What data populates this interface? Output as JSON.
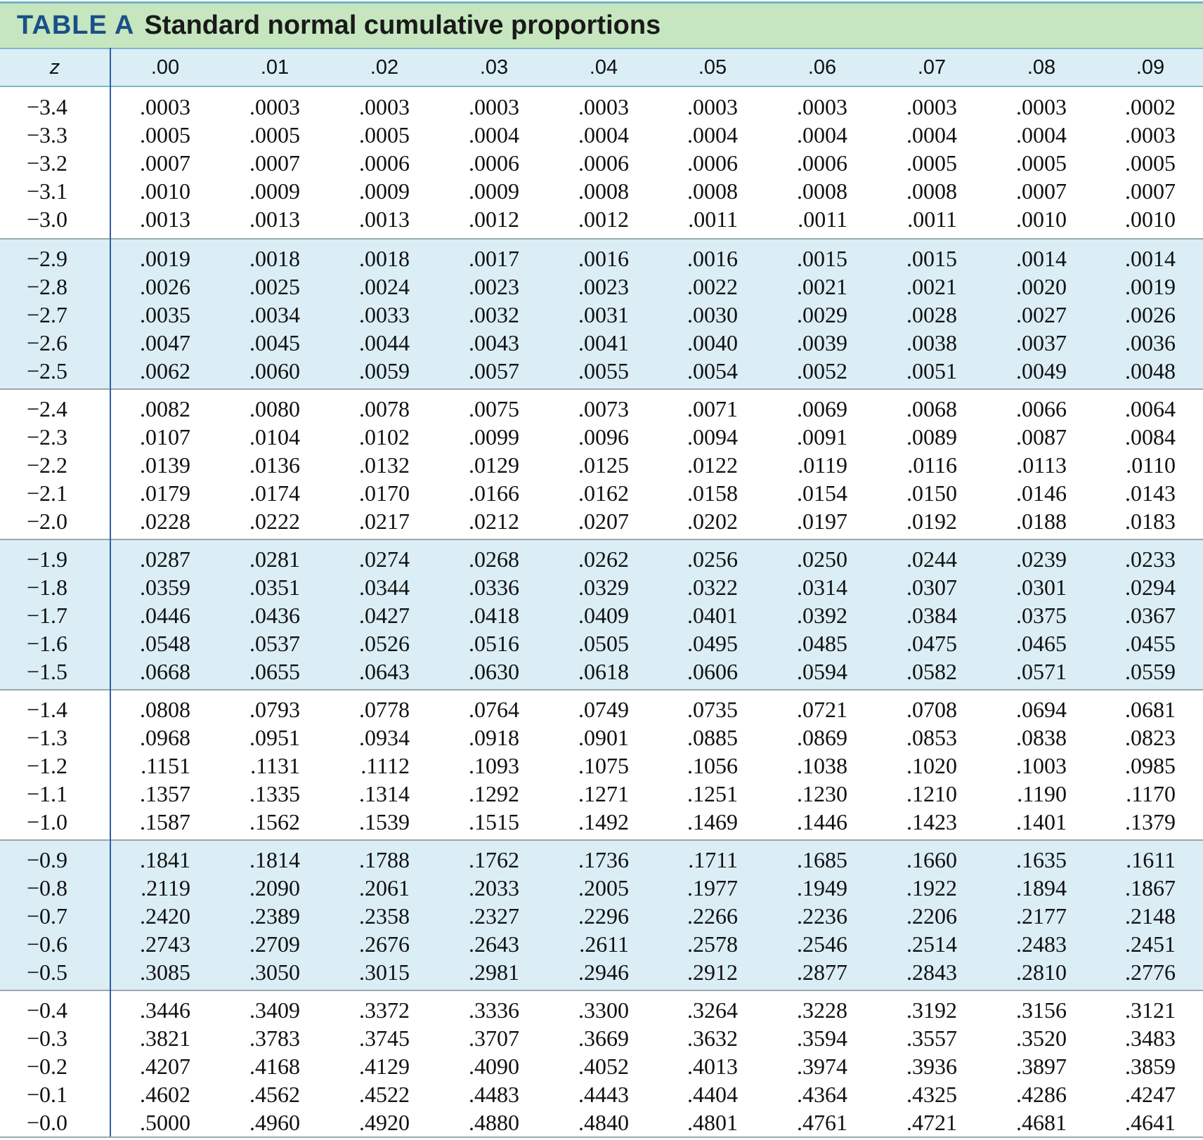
{
  "title": {
    "label": "TABLE A",
    "text": "Standard normal cumulative proportions"
  },
  "columns": [
    "z",
    ".00",
    ".01",
    ".02",
    ".03",
    ".04",
    ".05",
    ".06",
    ".07",
    ".08",
    ".09"
  ],
  "rows": [
    [
      "−3.4",
      ".0003",
      ".0003",
      ".0003",
      ".0003",
      ".0003",
      ".0003",
      ".0003",
      ".0003",
      ".0003",
      ".0002"
    ],
    [
      "−3.3",
      ".0005",
      ".0005",
      ".0005",
      ".0004",
      ".0004",
      ".0004",
      ".0004",
      ".0004",
      ".0004",
      ".0003"
    ],
    [
      "−3.2",
      ".0007",
      ".0007",
      ".0006",
      ".0006",
      ".0006",
      ".0006",
      ".0006",
      ".0005",
      ".0005",
      ".0005"
    ],
    [
      "−3.1",
      ".0010",
      ".0009",
      ".0009",
      ".0009",
      ".0008",
      ".0008",
      ".0008",
      ".0008",
      ".0007",
      ".0007"
    ],
    [
      "−3.0",
      ".0013",
      ".0013",
      ".0013",
      ".0012",
      ".0012",
      ".0011",
      ".0011",
      ".0011",
      ".0010",
      ".0010"
    ],
    [
      "−2.9",
      ".0019",
      ".0018",
      ".0018",
      ".0017",
      ".0016",
      ".0016",
      ".0015",
      ".0015",
      ".0014",
      ".0014"
    ],
    [
      "−2.8",
      ".0026",
      ".0025",
      ".0024",
      ".0023",
      ".0023",
      ".0022",
      ".0021",
      ".0021",
      ".0020",
      ".0019"
    ],
    [
      "−2.7",
      ".0035",
      ".0034",
      ".0033",
      ".0032",
      ".0031",
      ".0030",
      ".0029",
      ".0028",
      ".0027",
      ".0026"
    ],
    [
      "−2.6",
      ".0047",
      ".0045",
      ".0044",
      ".0043",
      ".0041",
      ".0040",
      ".0039",
      ".0038",
      ".0037",
      ".0036"
    ],
    [
      "−2.5",
      ".0062",
      ".0060",
      ".0059",
      ".0057",
      ".0055",
      ".0054",
      ".0052",
      ".0051",
      ".0049",
      ".0048"
    ],
    [
      "−2.4",
      ".0082",
      ".0080",
      ".0078",
      ".0075",
      ".0073",
      ".0071",
      ".0069",
      ".0068",
      ".0066",
      ".0064"
    ],
    [
      "−2.3",
      ".0107",
      ".0104",
      ".0102",
      ".0099",
      ".0096",
      ".0094",
      ".0091",
      ".0089",
      ".0087",
      ".0084"
    ],
    [
      "−2.2",
      ".0139",
      ".0136",
      ".0132",
      ".0129",
      ".0125",
      ".0122",
      ".0119",
      ".0116",
      ".0113",
      ".0110"
    ],
    [
      "−2.1",
      ".0179",
      ".0174",
      ".0170",
      ".0166",
      ".0162",
      ".0158",
      ".0154",
      ".0150",
      ".0146",
      ".0143"
    ],
    [
      "−2.0",
      ".0228",
      ".0222",
      ".0217",
      ".0212",
      ".0207",
      ".0202",
      ".0197",
      ".0192",
      ".0188",
      ".0183"
    ],
    [
      "−1.9",
      ".0287",
      ".0281",
      ".0274",
      ".0268",
      ".0262",
      ".0256",
      ".0250",
      ".0244",
      ".0239",
      ".0233"
    ],
    [
      "−1.8",
      ".0359",
      ".0351",
      ".0344",
      ".0336",
      ".0329",
      ".0322",
      ".0314",
      ".0307",
      ".0301",
      ".0294"
    ],
    [
      "−1.7",
      ".0446",
      ".0436",
      ".0427",
      ".0418",
      ".0409",
      ".0401",
      ".0392",
      ".0384",
      ".0375",
      ".0367"
    ],
    [
      "−1.6",
      ".0548",
      ".0537",
      ".0526",
      ".0516",
      ".0505",
      ".0495",
      ".0485",
      ".0475",
      ".0465",
      ".0455"
    ],
    [
      "−1.5",
      ".0668",
      ".0655",
      ".0643",
      ".0630",
      ".0618",
      ".0606",
      ".0594",
      ".0582",
      ".0571",
      ".0559"
    ],
    [
      "−1.4",
      ".0808",
      ".0793",
      ".0778",
      ".0764",
      ".0749",
      ".0735",
      ".0721",
      ".0708",
      ".0694",
      ".0681"
    ],
    [
      "−1.3",
      ".0968",
      ".0951",
      ".0934",
      ".0918",
      ".0901",
      ".0885",
      ".0869",
      ".0853",
      ".0838",
      ".0823"
    ],
    [
      "−1.2",
      ".1151",
      ".1131",
      ".1112",
      ".1093",
      ".1075",
      ".1056",
      ".1038",
      ".1020",
      ".1003",
      ".0985"
    ],
    [
      "−1.1",
      ".1357",
      ".1335",
      ".1314",
      ".1292",
      ".1271",
      ".1251",
      ".1230",
      ".1210",
      ".1190",
      ".1170"
    ],
    [
      "−1.0",
      ".1587",
      ".1562",
      ".1539",
      ".1515",
      ".1492",
      ".1469",
      ".1446",
      ".1423",
      ".1401",
      ".1379"
    ],
    [
      "−0.9",
      ".1841",
      ".1814",
      ".1788",
      ".1762",
      ".1736",
      ".1711",
      ".1685",
      ".1660",
      ".1635",
      ".1611"
    ],
    [
      "−0.8",
      ".2119",
      ".2090",
      ".2061",
      ".2033",
      ".2005",
      ".1977",
      ".1949",
      ".1922",
      ".1894",
      ".1867"
    ],
    [
      "−0.7",
      ".2420",
      ".2389",
      ".2358",
      ".2327",
      ".2296",
      ".2266",
      ".2236",
      ".2206",
      ".2177",
      ".2148"
    ],
    [
      "−0.6",
      ".2743",
      ".2709",
      ".2676",
      ".2643",
      ".2611",
      ".2578",
      ".2546",
      ".2514",
      ".2483",
      ".2451"
    ],
    [
      "−0.5",
      ".3085",
      ".3050",
      ".3015",
      ".2981",
      ".2946",
      ".2912",
      ".2877",
      ".2843",
      ".2810",
      ".2776"
    ],
    [
      "−0.4",
      ".3446",
      ".3409",
      ".3372",
      ".3336",
      ".3300",
      ".3264",
      ".3228",
      ".3192",
      ".3156",
      ".3121"
    ],
    [
      "−0.3",
      ".3821",
      ".3783",
      ".3745",
      ".3707",
      ".3669",
      ".3632",
      ".3594",
      ".3557",
      ".3520",
      ".3483"
    ],
    [
      "−0.2",
      ".4207",
      ".4168",
      ".4129",
      ".4090",
      ".4052",
      ".4013",
      ".3974",
      ".3936",
      ".3897",
      ".3859"
    ],
    [
      "−0.1",
      ".4602",
      ".4562",
      ".4522",
      ".4483",
      ".4443",
      ".4404",
      ".4364",
      ".4325",
      ".4286",
      ".4247"
    ],
    [
      "−0.0",
      ".5000",
      ".4960",
      ".4920",
      ".4880",
      ".4840",
      ".4801",
      ".4761",
      ".4721",
      ".4681",
      ".4641"
    ]
  ],
  "colors": {
    "title_bg": "#c5e6be",
    "title_label": "#1a4f8a",
    "shade": "#dbeef5",
    "rule": "#2c5fa0"
  }
}
